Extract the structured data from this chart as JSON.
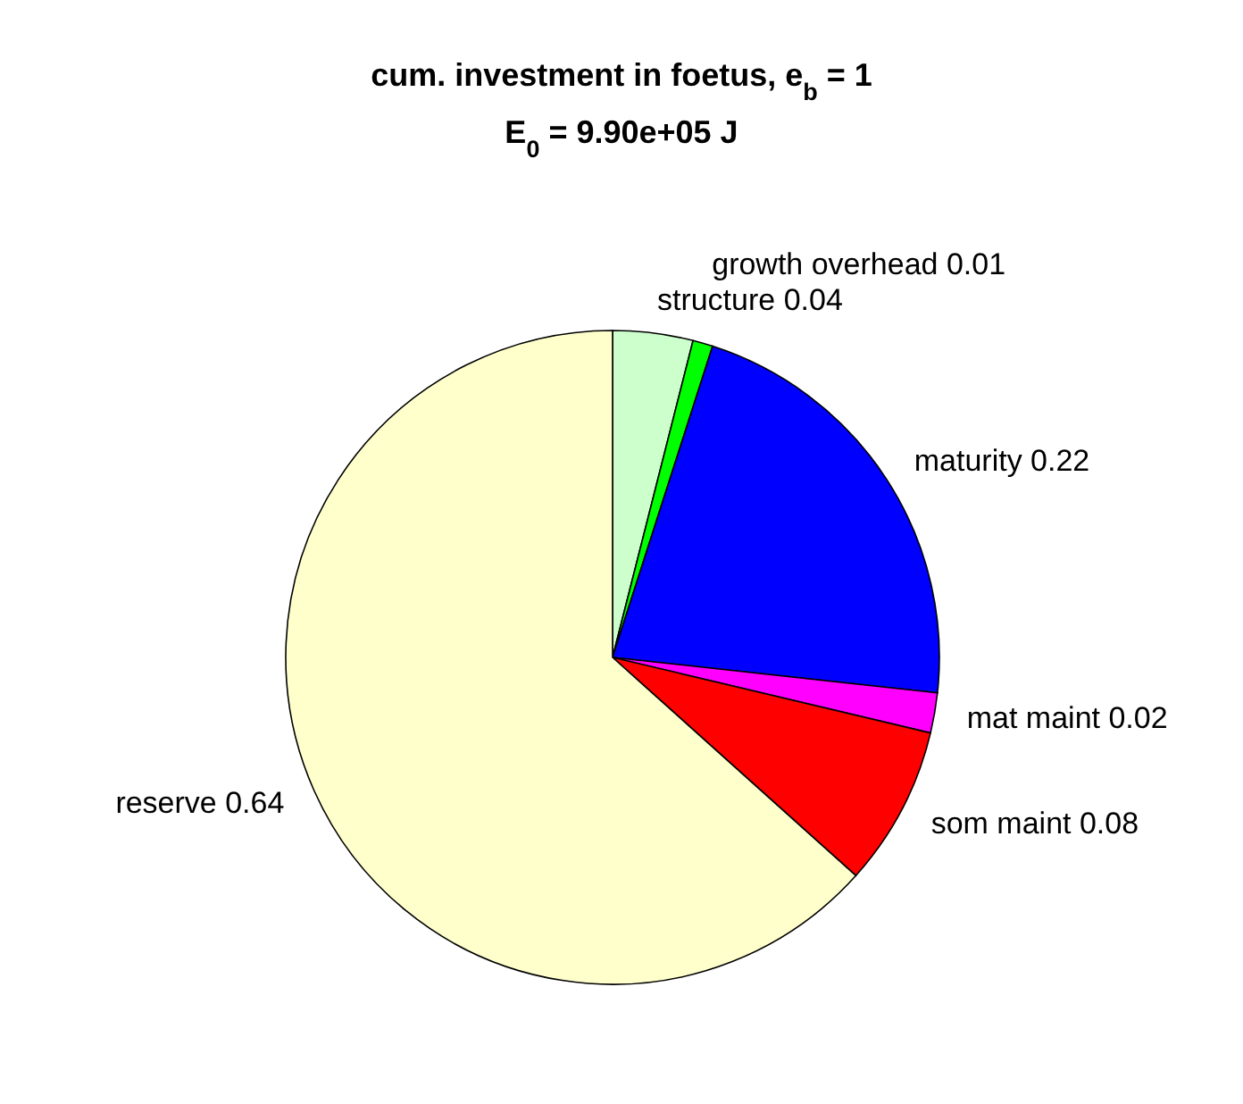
{
  "chart_data": {
    "type": "pie",
    "title": "cum. investment in foetus, e$_{b}$ = 1",
    "subtitle": "E$_{0}$ = 9.90e+05 J",
    "categories": [
      "structure 0.04",
      "growth overhead 0.01",
      "maturity 0.22",
      "mat maint 0.02",
      "som maint 0.08",
      "reserve 0.64"
    ],
    "values": [
      0.04,
      0.01,
      0.22,
      0.02,
      0.08,
      0.64
    ],
    "colors": [
      "#ccffcc",
      "#00ff00",
      "#0000ff",
      "#ff00ff",
      "#ff0000",
      "#ffffcc"
    ]
  }
}
